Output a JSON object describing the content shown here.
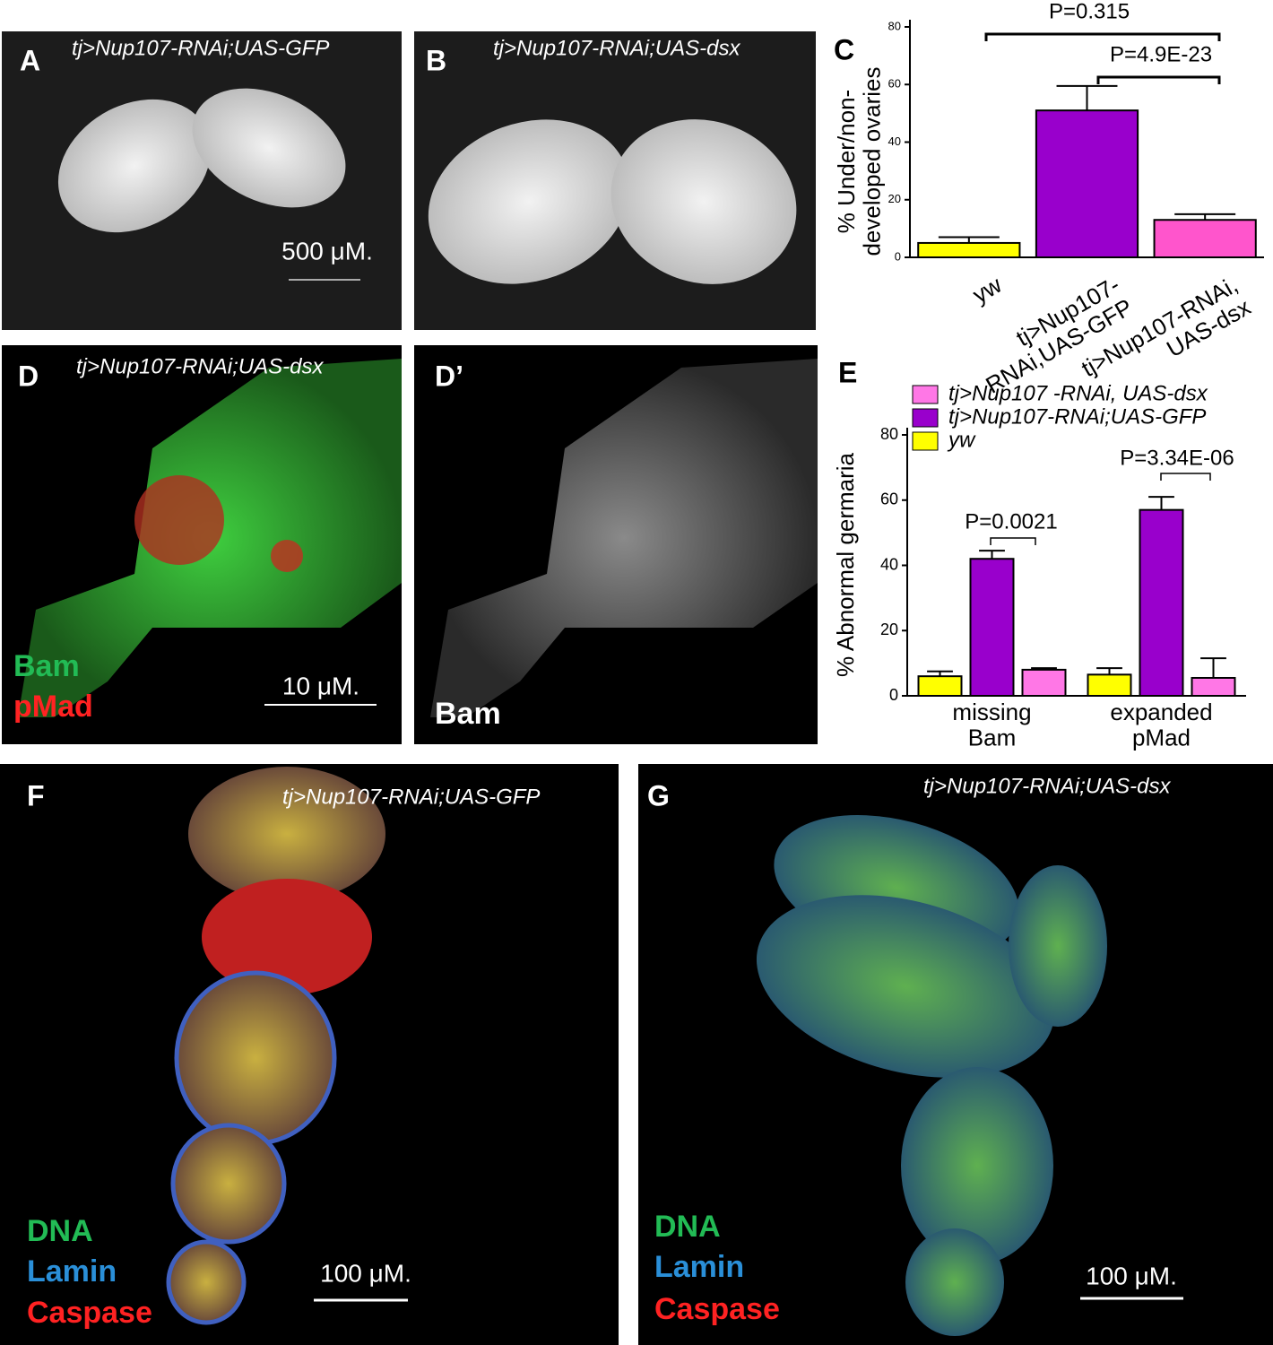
{
  "panels": [
    {
      "label": "A",
      "title": "tj>Nup107-RNAi;UAS-GFP",
      "scale": "500 μM."
    },
    {
      "label": "B",
      "title": "tj>Nup107-RNAi;UAS-dsx"
    },
    {
      "label": "D",
      "title": "tj>Nup107-RNAi;UAS-dsx",
      "stains": [
        "Bam",
        "pMad"
      ],
      "scale": "10 μM."
    },
    {
      "label": "D’",
      "stains": [
        "Bam"
      ]
    },
    {
      "label": "F",
      "title": "tj>Nup107-RNAi;UAS-GFP",
      "stains": [
        "DNA",
        "Lamin",
        "Caspase"
      ],
      "scale": "100 μM."
    },
    {
      "label": "G",
      "title": "tj>Nup107-RNAi;UAS-dsx",
      "stains": [
        "DNA",
        "Lamin",
        "Caspase"
      ],
      "scale": "100 μM."
    }
  ],
  "chart_data": [
    {
      "type": "bar",
      "label": "C",
      "y_label": "% Under/non-\ndeveloped ovaries",
      "categories": [
        "yw",
        "tj>Nup107-\nRNAi,UAS-GFP",
        "tj>Nup107-RNAi,\nUAS-dsx"
      ],
      "values": [
        5,
        51,
        13
      ],
      "errors": [
        2,
        8.5,
        2
      ],
      "colors": [
        "#ffff00",
        "#9900cc",
        "#ff55cc"
      ],
      "ylim": [
        0,
        80
      ],
      "yticks": [
        0,
        20,
        40,
        60,
        80
      ],
      "annotations": [
        "P=0.315",
        "P=4.9E-23"
      ]
    },
    {
      "type": "bar",
      "label": "E",
      "y_label": "% Abnormal germaria",
      "categories": [
        "missing\nBam",
        "expanded\npMad"
      ],
      "series": [
        {
          "name": "tj>Nup107 -RNAi, UAS-dsx",
          "color": "#ff77e6",
          "values": [
            8,
            5.5
          ],
          "errors": [
            0.5,
            6
          ]
        },
        {
          "name": "tj>Nup107-RNAi;UAS-GFP",
          "color": "#9900cc",
          "values": [
            42,
            57
          ],
          "errors": [
            2.5,
            4
          ]
        },
        {
          "name": "yw",
          "color": "#ffff00",
          "values": [
            6,
            6.5
          ],
          "errors": [
            1.5,
            2
          ]
        }
      ],
      "ylim": [
        0,
        80
      ],
      "yticks": [
        0,
        20,
        40,
        60,
        80
      ],
      "annotations": [
        "P=0.0021",
        "P=3.34E-06"
      ]
    }
  ]
}
